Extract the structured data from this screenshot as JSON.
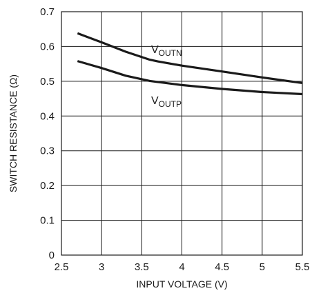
{
  "chart_data": {
    "type": "line",
    "xlabel": "INPUT VOLTAGE (V)",
    "ylabel": "SWITCH RESISTANCE (Ω)",
    "xlim": [
      2.5,
      5.5
    ],
    "ylim": [
      0,
      0.7
    ],
    "x_ticks": [
      "2.5",
      "3",
      "3.5",
      "4",
      "4.5",
      "5",
      "5.5"
    ],
    "y_ticks": [
      "0",
      "0.1",
      "0.2",
      "0.3",
      "0.4",
      "0.5",
      "0.6",
      "0.7"
    ],
    "grid": true,
    "series": [
      {
        "name": "VOUTN",
        "label_main": "V",
        "label_sub": "OUTN",
        "x": [
          2.7,
          3.0,
          3.3,
          3.6,
          3.7,
          4.0,
          4.5,
          5.0,
          5.5
        ],
        "values": [
          0.638,
          0.612,
          0.585,
          0.562,
          0.557,
          0.545,
          0.528,
          0.511,
          0.495
        ]
      },
      {
        "name": "VOUTP",
        "label_main": "V",
        "label_sub": "OUTP",
        "x": [
          2.7,
          3.0,
          3.3,
          3.6,
          3.7,
          4.0,
          4.5,
          5.0,
          5.5
        ],
        "values": [
          0.558,
          0.538,
          0.516,
          0.501,
          0.498,
          0.489,
          0.478,
          0.469,
          0.463
        ]
      }
    ]
  }
}
